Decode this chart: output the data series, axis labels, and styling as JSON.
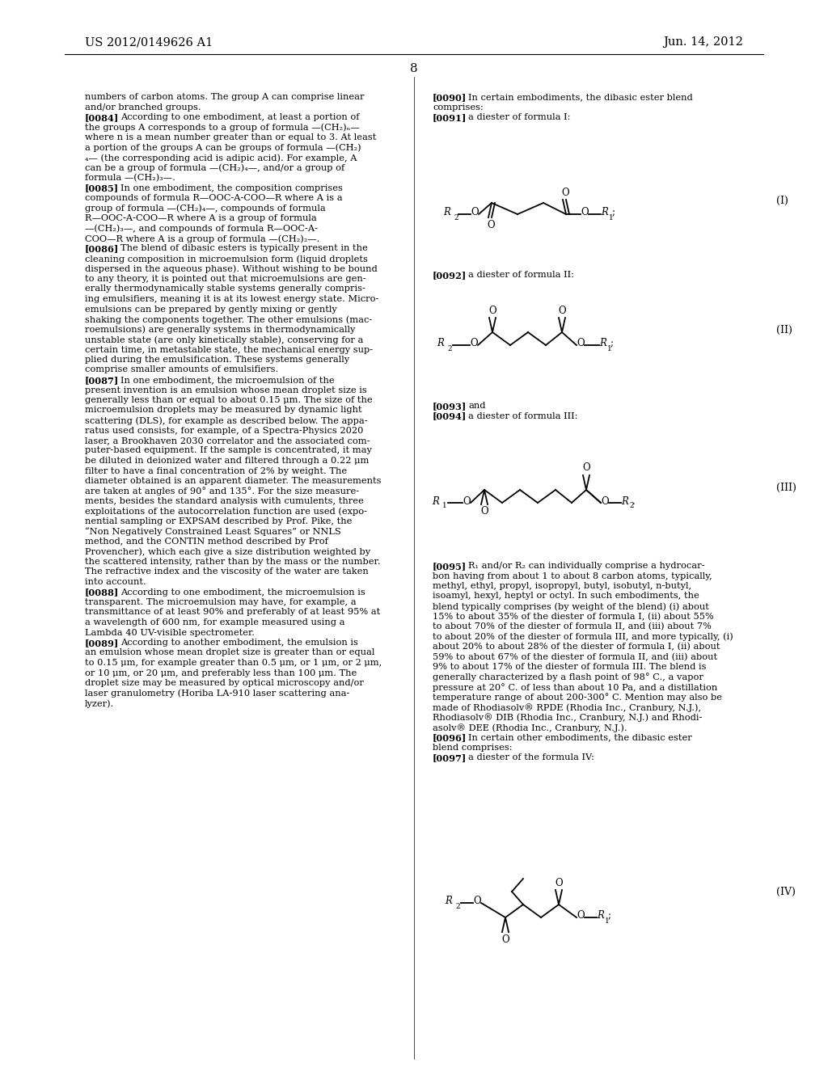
{
  "bg_color": "#ffffff",
  "header_left": "US 2012/0149626 A1",
  "header_right": "Jun. 14, 2012",
  "page_number": "8",
  "left_lines": [
    [
      "",
      "numbers of carbon atoms. The group A can comprise linear"
    ],
    [
      "",
      "and/or branched groups."
    ],
    [
      "[0084]",
      "According to one embodiment, at least a portion of"
    ],
    [
      "",
      "the groups A corresponds to a group of formula —(CH₂)ₙ—"
    ],
    [
      "",
      "where n is a mean number greater than or equal to 3. At least"
    ],
    [
      "",
      "a portion of the groups A can be groups of formula —(CH₂)"
    ],
    [
      "",
      "₄— (the corresponding acid is adipic acid). For example, A"
    ],
    [
      "",
      "can be a group of formula —(CH₂)₄—, and/or a group of"
    ],
    [
      "",
      "formula —(CH₂)₃—."
    ],
    [
      "[0085]",
      "In one embodiment, the composition comprises"
    ],
    [
      "",
      "compounds of formula R—OOC-A-COO—R where A is a"
    ],
    [
      "",
      "group of formula —(CH₂)₄—, compounds of formula"
    ],
    [
      "",
      "R—OOC-A-COO—R where A is a group of formula"
    ],
    [
      "",
      "—(CH₂)₃—, and compounds of formula R—OOC-A-"
    ],
    [
      "",
      "COO—R where A is a group of formula —(CH₂)₂—."
    ],
    [
      "[0086]",
      "The blend of dibasic esters is typically present in the"
    ],
    [
      "",
      "cleaning composition in microemulsion form (liquid droplets"
    ],
    [
      "",
      "dispersed in the aqueous phase). Without wishing to be bound"
    ],
    [
      "",
      "to any theory, it is pointed out that microemulsions are gen-"
    ],
    [
      "",
      "erally thermodynamically stable systems generally compris-"
    ],
    [
      "",
      "ing emulsifiers, meaning it is at its lowest energy state. Micro-"
    ],
    [
      "",
      "emulsions can be prepared by gently mixing or gently"
    ],
    [
      "",
      "shaking the components together. The other emulsions (mac-"
    ],
    [
      "",
      "roemulsions) are generally systems in thermodynamically"
    ],
    [
      "",
      "unstable state (are only kinetically stable), conserving for a"
    ],
    [
      "",
      "certain time, in metastable state, the mechanical energy sup-"
    ],
    [
      "",
      "plied during the emulsification. These systems generally"
    ],
    [
      "",
      "comprise smaller amounts of emulsifiers."
    ],
    [
      "[0087]",
      "In one embodiment, the microemulsion of the"
    ],
    [
      "",
      "present invention is an emulsion whose mean droplet size is"
    ],
    [
      "",
      "generally less than or equal to about 0.15 μm. The size of the"
    ],
    [
      "",
      "microemulsion droplets may be measured by dynamic light"
    ],
    [
      "",
      "scattering (DLS), for example as described below. The appa-"
    ],
    [
      "",
      "ratus used consists, for example, of a Spectra-Physics 2020"
    ],
    [
      "",
      "laser, a Brookhaven 2030 correlator and the associated com-"
    ],
    [
      "",
      "puter-based equipment. If the sample is concentrated, it may"
    ],
    [
      "",
      "be diluted in deionized water and filtered through a 0.22 μm"
    ],
    [
      "",
      "filter to have a final concentration of 2% by weight. The"
    ],
    [
      "",
      "diameter obtained is an apparent diameter. The measurements"
    ],
    [
      "",
      "are taken at angles of 90° and 135°. For the size measure-"
    ],
    [
      "",
      "ments, besides the standard analysis with cumulents, three"
    ],
    [
      "",
      "exploitations of the autocorrelation function are used (expo-"
    ],
    [
      "",
      "nential sampling or EXPSAM described by Prof. Pike, the"
    ],
    [
      "",
      "“Non Negatively Constrained Least Squares” or NNLS"
    ],
    [
      "",
      "method, and the CONTIN method described by Prof"
    ],
    [
      "",
      "Provencher), which each give a size distribution weighted by"
    ],
    [
      "",
      "the scattered intensity, rather than by the mass or the number."
    ],
    [
      "",
      "The refractive index and the viscosity of the water are taken"
    ],
    [
      "",
      "into account."
    ],
    [
      "[0088]",
      "According to one embodiment, the microemulsion is"
    ],
    [
      "",
      "transparent. The microemulsion may have, for example, a"
    ],
    [
      "",
      "transmittance of at least 90% and preferably of at least 95% at"
    ],
    [
      "",
      "a wavelength of 600 nm, for example measured using a"
    ],
    [
      "",
      "Lambda 40 UV-visible spectrometer."
    ],
    [
      "[0089]",
      "According to another embodiment, the emulsion is"
    ],
    [
      "",
      "an emulsion whose mean droplet size is greater than or equal"
    ],
    [
      "",
      "to 0.15 μm, for example greater than 0.5 μm, or 1 μm, or 2 μm,"
    ],
    [
      "",
      "or 10 μm, or 20 μm, and preferably less than 100 μm. The"
    ],
    [
      "",
      "droplet size may be measured by optical microscopy and/or"
    ],
    [
      "",
      "laser granulometry (Horiba LA-910 laser scattering ana-"
    ],
    [
      "",
      "lyzer)."
    ]
  ],
  "right_lines_block1": [
    [
      "[0090]",
      "In certain embodiments, the dibasic ester blend"
    ],
    [
      "",
      "comprises:"
    ],
    [
      "[0091]",
      "a diester of formula I:"
    ]
  ],
  "right_lines_block2": [
    [
      "[0092]",
      "a diester of formula II:"
    ]
  ],
  "right_lines_block3": [
    [
      "[0093]",
      "and"
    ],
    [
      "[0094]",
      "a diester of formula III:"
    ]
  ],
  "right_lines_block4": [
    [
      "[0095]",
      "R₁ and/or R₂ can individually comprise a hydrocar-"
    ],
    [
      "",
      "bon having from about 1 to about 8 carbon atoms, typically,"
    ],
    [
      "",
      "methyl, ethyl, propyl, isopropyl, butyl, isobutyl, n-butyl,"
    ],
    [
      "",
      "isoamyl, hexyl, heptyl or octyl. In such embodiments, the"
    ],
    [
      "",
      "blend typically comprises (by weight of the blend) (i) about"
    ],
    [
      "",
      "15% to about 35% of the diester of formula I, (ii) about 55%"
    ],
    [
      "",
      "to about 70% of the diester of formula II, and (iii) about 7%"
    ],
    [
      "",
      "to about 20% of the diester of formula III, and more typically, (i)"
    ],
    [
      "",
      "about 20% to about 28% of the diester of formula I, (ii) about"
    ],
    [
      "",
      "59% to about 67% of the diester of formula II, and (iii) about"
    ],
    [
      "",
      "9% to about 17% of the diester of formula III. The blend is"
    ],
    [
      "",
      "generally characterized by a flash point of 98° C., a vapor"
    ],
    [
      "",
      "pressure at 20° C. of less than about 10 Pa, and a distillation"
    ],
    [
      "",
      "temperature range of about 200-300° C. Mention may also be"
    ],
    [
      "",
      "made of Rhodiasolv® RPDE (Rhodia Inc., Cranbury, N.J.),"
    ],
    [
      "",
      "Rhodiasolv® DIB (Rhodia Inc., Cranbury, N.J.) and Rhodi-"
    ],
    [
      "",
      "asolv® DEE (Rhodia Inc., Cranbury, N.J.)."
    ],
    [
      "[0096]",
      "In certain other embodiments, the dibasic ester"
    ],
    [
      "",
      "blend comprises:"
    ],
    [
      "[0097]",
      "a diester of the formula IV:"
    ]
  ]
}
